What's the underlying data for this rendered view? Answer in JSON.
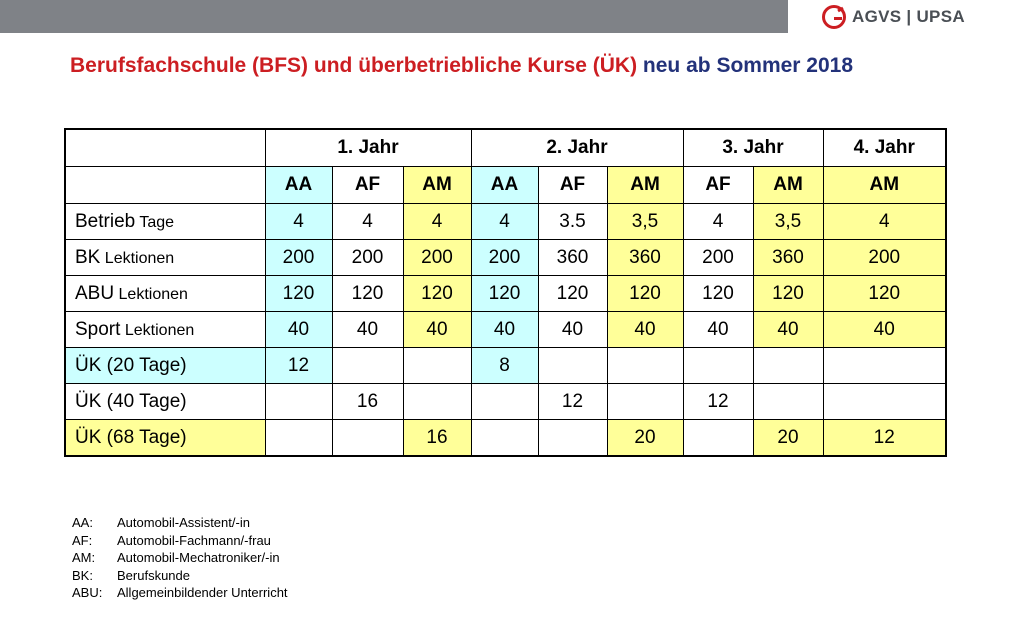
{
  "title": {
    "part1": "Berufsfachschule (BFS) und überbetriebliche Kurse (ÜK)",
    "part2": " neu ab Sommer 2018"
  },
  "logo": {
    "text": "AGVS | UPSA",
    "accent": "#cc1e22"
  },
  "colors": {
    "cyan": "#ccffff",
    "yellow": "#ffff99",
    "title_red": "#cc1e22",
    "title_blue": "#23327a"
  },
  "table": {
    "years": [
      "1. Jahr",
      "2. Jahr",
      "3. Jahr",
      "4. Jahr"
    ],
    "professions": [
      "AA",
      "AF",
      "AM",
      "AA",
      "AF",
      "AM",
      "AF",
      "AM",
      "AM"
    ],
    "rows": [
      {
        "label": "Betrieb",
        "sub": " Tage",
        "values": [
          "4",
          "4",
          "4",
          "4",
          "3.5",
          "3,5",
          "4",
          "3,5",
          "4"
        ]
      },
      {
        "label": "BK",
        "sub": " Lektionen",
        "values": [
          "200",
          "200",
          "200",
          "200",
          "360",
          "360",
          "200",
          "360",
          "200"
        ]
      },
      {
        "label": "ABU",
        "sub": " Lektionen",
        "values": [
          "120",
          "120",
          "120",
          "120",
          "120",
          "120",
          "120",
          "120",
          "120"
        ]
      },
      {
        "label": "Sport",
        "sub": " Lektionen",
        "values": [
          "40",
          "40",
          "40",
          "40",
          "40",
          "40",
          "40",
          "40",
          "40"
        ]
      },
      {
        "label": "ÜK (20 Tage)",
        "sub": "",
        "values": [
          "12",
          "",
          "",
          "8",
          "",
          "",
          "",
          "",
          ""
        ]
      },
      {
        "label": "ÜK (40 Tage)",
        "sub": "",
        "values": [
          "",
          "16",
          "",
          "",
          "12",
          "",
          "12",
          "",
          ""
        ]
      },
      {
        "label": "ÜK (68 Tage)",
        "sub": "",
        "values": [
          "",
          "",
          "16",
          "",
          "",
          "20",
          "",
          "20",
          "12"
        ]
      }
    ]
  },
  "legend": [
    {
      "key": "AA:",
      "text": "Automobil-Assistent/-in"
    },
    {
      "key": "AF:",
      "text": "Automobil-Fachmann/-frau"
    },
    {
      "key": "AM:",
      "text": "Automobil-Mechatroniker/-in"
    },
    {
      "key": "BK:",
      "text": "Berufskunde"
    },
    {
      "key": "ABU:",
      "text": "Allgemeinbildender Unterricht"
    }
  ]
}
